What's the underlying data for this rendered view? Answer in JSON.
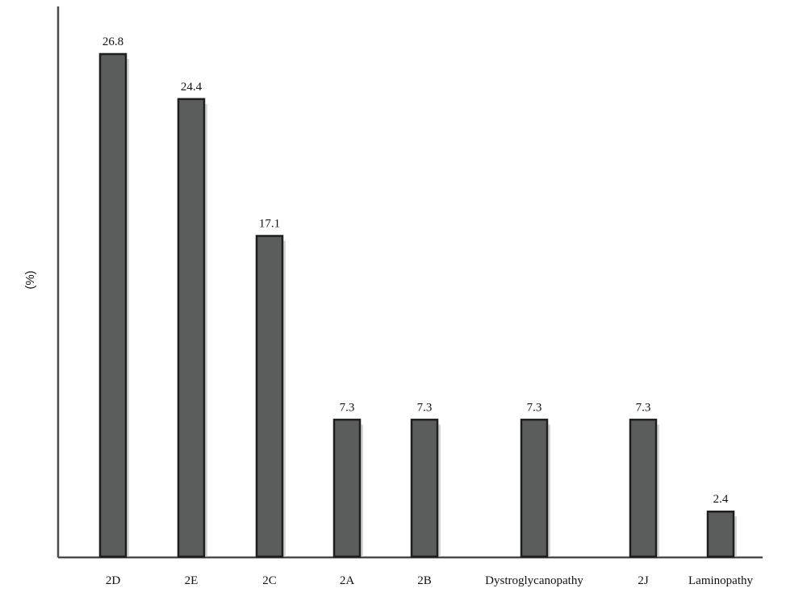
{
  "chart_data": {
    "type": "bar",
    "title": "",
    "xlabel": "",
    "ylabel": "(%)",
    "categories": [
      "2D",
      "2E",
      "2C",
      "2A",
      "2B",
      "Dystroglycanopathy",
      "2J",
      "Laminopathy"
    ],
    "values": [
      26.8,
      24.4,
      17.1,
      7.3,
      7.3,
      7.3,
      7.3,
      2.4
    ],
    "value_labels": [
      "26.8",
      "24.4",
      "17.1",
      "7.3",
      "7.3",
      "7.3",
      "7.3",
      "2.4"
    ],
    "ylim": [
      0,
      26.8
    ],
    "grid": false,
    "legend": "none",
    "colors": {
      "bar_fill": "#5b5c5c",
      "bar_border": "#1e1e1e",
      "axis": "#4a4a4a"
    }
  }
}
